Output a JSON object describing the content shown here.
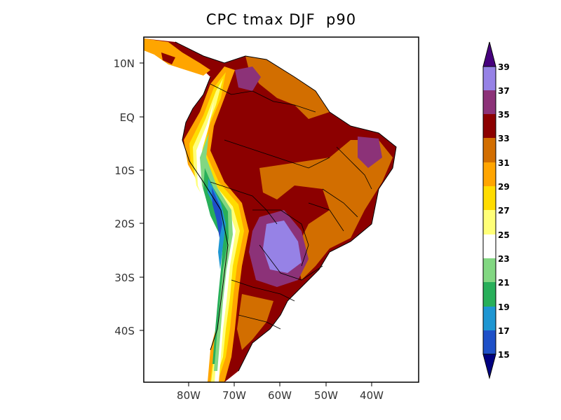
{
  "title": "CPC tmax DJF  p90",
  "colors": {
    "ocean": "#ffffff",
    "frame": "#000000",
    "c_lt15": "#000080",
    "c_15_17": "#1e50c8",
    "c_17_19": "#1e96d2",
    "c_19_21": "#28af5a",
    "c_21_23": "#82d782",
    "c_23_25": "#ffffff",
    "c_25_27": "#ffff78",
    "c_27_29": "#ffdc00",
    "c_29_31": "#ffa500",
    "c_31_33": "#d26e00",
    "c_33_35": "#8c0000",
    "c_35_37": "#8c3278",
    "c_37_39": "#9682e6",
    "c_gt39": "#46007d"
  },
  "lat_labels": [
    "10N",
    "EQ",
    "10S",
    "20S",
    "30S",
    "40S"
  ],
  "lon_labels": [
    "80W",
    "70W",
    "60W",
    "50W",
    "40W"
  ],
  "colorbar": {
    "labels": [
      "15",
      "17",
      "19",
      "21",
      "23",
      "25",
      "27",
      "29",
      "31",
      "33",
      "35",
      "37",
      "39"
    ]
  }
}
